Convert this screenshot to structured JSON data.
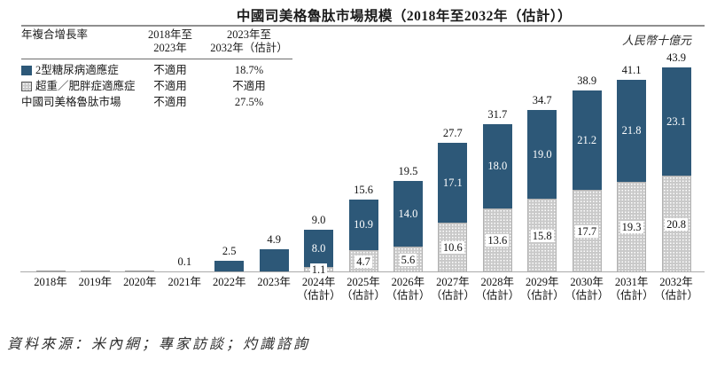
{
  "chart_data": {
    "type": "bar",
    "stacked": true,
    "title": "中國司美格魯肽市場規模（2018年至2032年（估計））",
    "unit_label": "人民幣十億元",
    "ylim": [
      0,
      47
    ],
    "grid": false,
    "legend_position": "top-left-table",
    "categories": [
      {
        "label": "2018年",
        "sublabel": ""
      },
      {
        "label": "2019年",
        "sublabel": ""
      },
      {
        "label": "2020年",
        "sublabel": ""
      },
      {
        "label": "2021年",
        "sublabel": ""
      },
      {
        "label": "2022年",
        "sublabel": ""
      },
      {
        "label": "2023年",
        "sublabel": ""
      },
      {
        "label": "2024年",
        "sublabel": "（估計）"
      },
      {
        "label": "2025年",
        "sublabel": "（估計）"
      },
      {
        "label": "2026年",
        "sublabel": "（估計）"
      },
      {
        "label": "2027年",
        "sublabel": "（估計）"
      },
      {
        "label": "2028年",
        "sublabel": "（估計）"
      },
      {
        "label": "2029年",
        "sublabel": "（估計）"
      },
      {
        "label": "2030年",
        "sublabel": "（估計）"
      },
      {
        "label": "2031年",
        "sublabel": "（估計）"
      },
      {
        "label": "2032年",
        "sublabel": "（估計）"
      }
    ],
    "series": [
      {
        "name": "2型糖尿病適應症",
        "color": "#2d5878",
        "stack_position": "top",
        "values": [
          0,
          0,
          0,
          0.1,
          2.5,
          4.9,
          8.0,
          10.9,
          14.0,
          17.1,
          18.0,
          19.0,
          21.2,
          21.8,
          23.1
        ],
        "labels": [
          "",
          "",
          "",
          "",
          "",
          "",
          "8.0",
          "10.9",
          "14.0",
          "17.1",
          "18.0",
          "19.0",
          "21.2",
          "21.8",
          "23.1"
        ]
      },
      {
        "name": "超重／肥胖症適應症",
        "color": "#c9c9c9",
        "pattern": "white-dots",
        "stack_position": "bottom",
        "values": [
          0,
          0,
          0,
          0,
          0,
          0,
          1.1,
          4.7,
          5.6,
          10.6,
          13.6,
          15.8,
          17.7,
          19.3,
          20.8
        ],
        "labels": [
          "",
          "",
          "",
          "",
          "",
          "",
          "1.1",
          "4.7",
          "5.6",
          "10.6",
          "13.6",
          "15.8",
          "17.7",
          "19.3",
          "20.8"
        ]
      }
    ],
    "totals": [
      "",
      "",
      "",
      "0.1",
      "2.5",
      "4.9",
      "9.0",
      "15.6",
      "19.5",
      "27.7",
      "31.7",
      "34.7",
      "38.9",
      "41.1",
      "43.9"
    ]
  },
  "cagr_table": {
    "header": {
      "col1": "年複合增長率",
      "col2_line1": "2018年至",
      "col2_line2": "2023年",
      "col3_line1": "2023年至",
      "col3_line2": "2032年（估計）"
    },
    "rows": [
      {
        "label": "2型糖尿病適應症",
        "swatch": "blue",
        "v1": "不適用",
        "v2": "18.7%"
      },
      {
        "label": "超重／肥胖症適應症",
        "swatch": "gray-pattern",
        "v1": "不適用",
        "v2": "不適用"
      },
      {
        "label": "中國司美格魯肽市場",
        "swatch": "none",
        "v1": "不適用",
        "v2": "27.5%"
      }
    ]
  },
  "source_text": "資料來源：米內網；專家訪談；灼識諮詢"
}
